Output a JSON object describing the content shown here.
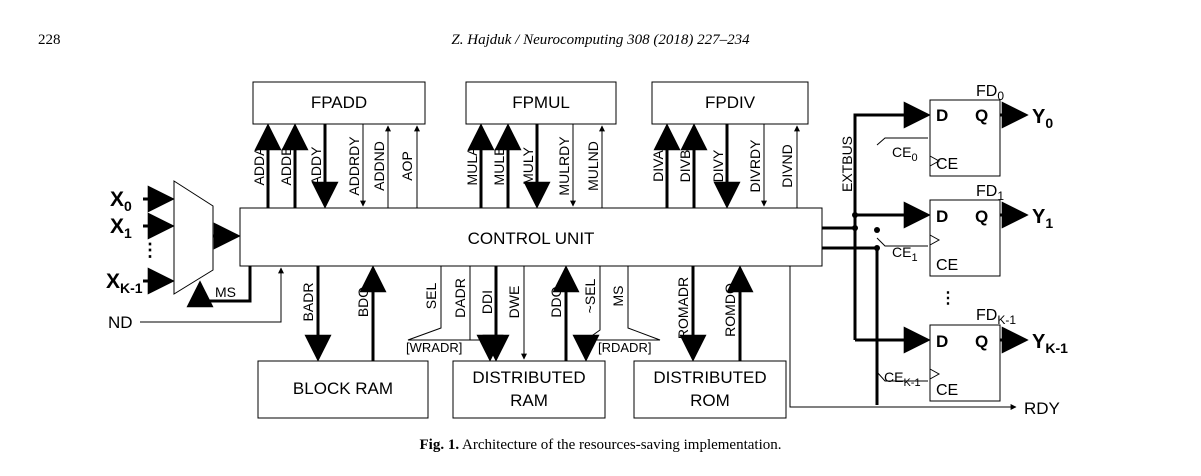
{
  "header": {
    "page_number": "228",
    "journal_ref": "Z. Hajduk / Neurocomputing 308 (2018) 227–234"
  },
  "figure": {
    "blocks": {
      "fpadd": "FPADD",
      "fpmul": "FPMUL",
      "fpdiv": "FPDIV",
      "control_unit": "CONTROL UNIT",
      "block_ram": "BLOCK RAM",
      "distributed_ram": [
        "DISTRIBUTED",
        "RAM"
      ],
      "distributed_rom": [
        "DISTRIBUTED",
        "ROM"
      ]
    },
    "fpadd_signals": [
      "ADDA",
      "ADDB",
      "ADDY",
      "ADDRDY",
      "ADDND",
      "AOP"
    ],
    "fpmul_signals": [
      "MULA",
      "MULB",
      "MULY",
      "MULRDY",
      "MULND"
    ],
    "fpdiv_signals": [
      "DIVA",
      "DIVB",
      "DIVY",
      "DIVRDY",
      "DIVND"
    ],
    "inputs": {
      "x0": "X",
      "x0_sub": "0",
      "x1": "X",
      "x1_sub": "1",
      "dots": "⋮",
      "xk": "X",
      "xk_sub": "K-1",
      "ms": "MS",
      "nd": "ND"
    },
    "lower_signals": [
      "BADR",
      "BDO",
      "SEL",
      "DADR",
      "DDI",
      "DWE",
      "DDO",
      "~SEL",
      "MS",
      "ROMADR",
      "ROMDO"
    ],
    "wradr": "[WRADR]",
    "rdadr": "[RDADR]",
    "extbus": "EXTBUS",
    "flipflops": [
      {
        "name": "FD",
        "sub": "0",
        "d": "D",
        "q": "Q",
        "ce": "CE",
        "ce_label": "CE",
        "ce_sub": "0",
        "out": "Y",
        "out_sub": "0"
      },
      {
        "name": "FD",
        "sub": "1",
        "d": "D",
        "q": "Q",
        "ce": "CE",
        "ce_label": "CE",
        "ce_sub": "1",
        "out": "Y",
        "out_sub": "1"
      },
      {
        "name": "FD",
        "sub": "K-1",
        "d": "D",
        "q": "Q",
        "ce": "CE",
        "ce_label": "CE",
        "ce_sub": "K-1",
        "out": "Y",
        "out_sub": "K-1"
      }
    ],
    "ff_dots": "⋮",
    "rdy": "RDY"
  },
  "caption": {
    "label": "Fig. 1.",
    "text": "Architecture of the resources-saving implementation."
  }
}
